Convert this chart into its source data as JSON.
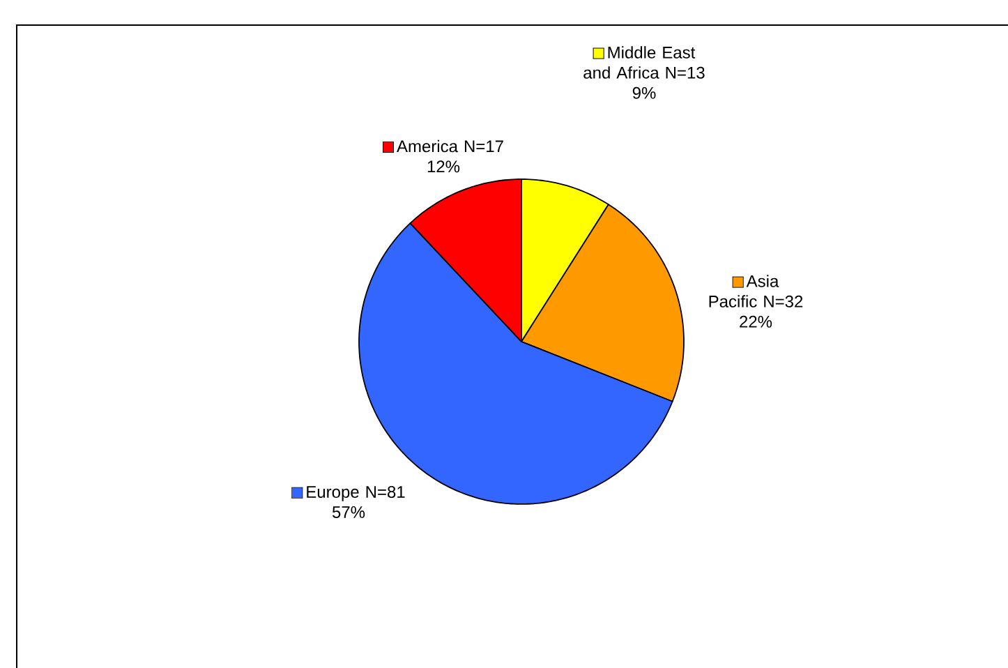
{
  "chart_data": {
    "type": "pie",
    "categories": [
      "Middle East and Africa N=13",
      "Asia Pacific N=32",
      "Europe N=81",
      "America N=17"
    ],
    "values": [
      9,
      22,
      57,
      12
    ],
    "value_labels": [
      "9%",
      "22%",
      "57%",
      "12%"
    ],
    "colors": [
      "#ffff00",
      "#ff9900",
      "#3366ff",
      "#ff0000"
    ],
    "legend": "right"
  }
}
